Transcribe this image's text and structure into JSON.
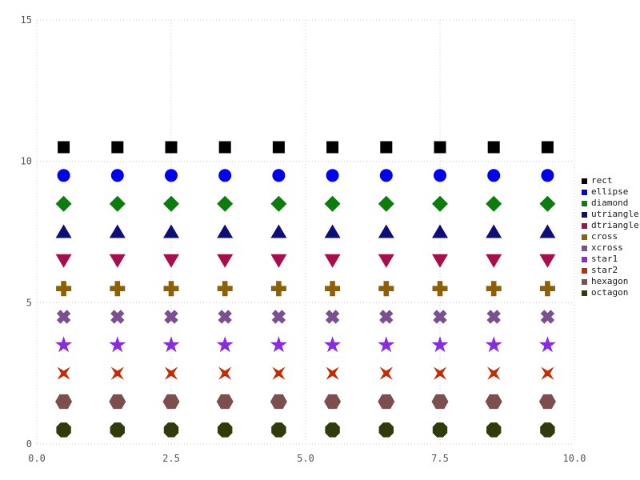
{
  "chart_data": {
    "type": "scatter",
    "title": "",
    "xlabel": "",
    "ylabel": "",
    "x": [
      0.5,
      1.5,
      2.5,
      3.5,
      4.5,
      5.5,
      6.5,
      7.5,
      8.5,
      9.5
    ],
    "series": [
      {
        "name": "rect",
        "shape": "rect",
        "color": "#000000",
        "y": 10.5
      },
      {
        "name": "ellipse",
        "shape": "ellipse",
        "color": "#0000f0",
        "y": 9.5
      },
      {
        "name": "diamond",
        "shape": "diamond",
        "color": "#0c7c0c",
        "y": 8.5
      },
      {
        "name": "utriangle",
        "shape": "utriangle",
        "color": "#0e0e78",
        "y": 7.5
      },
      {
        "name": "dtriangle",
        "shape": "dtriangle",
        "color": "#a80d4c",
        "y": 6.5
      },
      {
        "name": "cross",
        "shape": "cross",
        "color": "#8f5f04",
        "y": 5.5
      },
      {
        "name": "xcross",
        "shape": "xcross",
        "color": "#7b5090",
        "y": 4.5
      },
      {
        "name": "star1",
        "shape": "star1",
        "color": "#8a2be2",
        "y": 3.5
      },
      {
        "name": "star2",
        "shape": "star2",
        "color": "#c52b02",
        "y": 2.5
      },
      {
        "name": "hexagon",
        "shape": "hexagon",
        "color": "#7d4e4e",
        "y": 1.5
      },
      {
        "name": "octagon",
        "shape": "octagon",
        "color": "#2f3b0a",
        "y": 0.5
      }
    ],
    "xlim": [
      0,
      10
    ],
    "ylim": [
      0,
      15
    ],
    "xticks": {
      "values": [
        0,
        2.5,
        5,
        7.5,
        10
      ],
      "labels": [
        "0.0",
        "2.5",
        "5.0",
        "7.5",
        "10.0"
      ]
    },
    "yticks": {
      "values": [
        0,
        5,
        10,
        15
      ],
      "labels": [
        "0",
        "5",
        "10",
        "15"
      ]
    },
    "grid": "dotted",
    "legend_position": "right",
    "legend_entries": [
      "rect",
      "ellipse",
      "diamond",
      "utriangle",
      "dtriangle",
      "cross",
      "xcross",
      "star1",
      "star2",
      "hexagon",
      "octagon"
    ]
  },
  "style": {
    "background": "#ffffff",
    "grid_color": "#ccccd8",
    "tick_label_color": "#545454",
    "legend_text_color": "#1a1a1a"
  }
}
